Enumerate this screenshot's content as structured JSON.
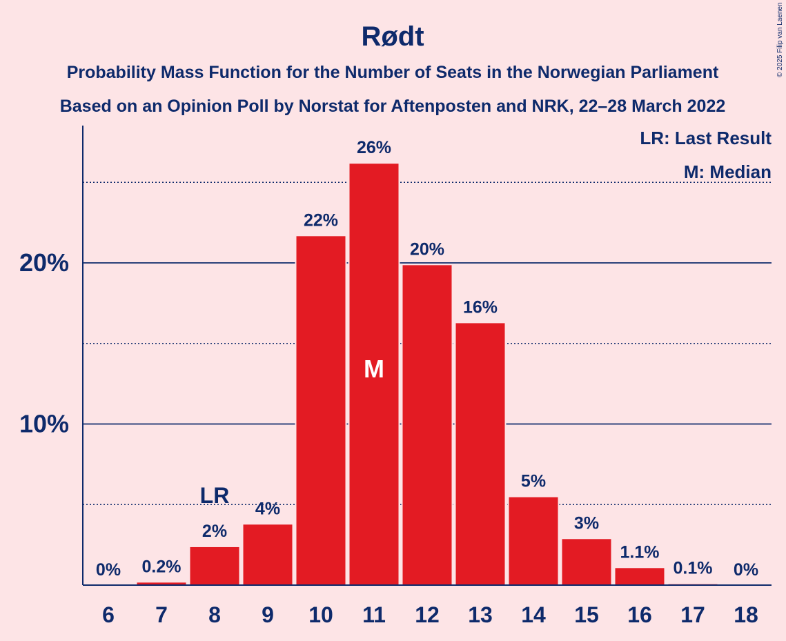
{
  "copyright": "© 2025 Filip van Laenen",
  "legend": {
    "lr": "LR: Last Result",
    "median": "M: Median"
  },
  "markers": {
    "last_result": "LR",
    "median": "M"
  },
  "colors": {
    "background": "#fde4e6",
    "bar": "#e31b23",
    "text": "#0e2a6b"
  },
  "chart_data": {
    "type": "bar",
    "title": "Rødt",
    "subtitle": "Probability Mass Function for the Number of Seats in the Norwegian Parliament",
    "subtitle2": "Based on an Opinion Poll by Norstat for Aftenposten and NRK, 22–28 March 2022",
    "xlabel": "",
    "ylabel": "",
    "categories": [
      "6",
      "7",
      "8",
      "9",
      "10",
      "11",
      "12",
      "13",
      "14",
      "15",
      "16",
      "17",
      "18"
    ],
    "values": [
      0,
      0.2,
      2.4,
      3.8,
      21.7,
      26.2,
      19.9,
      16.3,
      5.5,
      2.9,
      1.1,
      0.1,
      0
    ],
    "data_labels": [
      "0%",
      "0.2%",
      "2%",
      "4%",
      "22%",
      "26%",
      "20%",
      "16%",
      "5%",
      "3%",
      "1.1%",
      "0.1%",
      "0%"
    ],
    "ylim": [
      0,
      28.5
    ],
    "yticks": [
      10,
      20
    ],
    "ytick_labels": [
      "10%",
      "20%"
    ],
    "minor_gridlines": [
      5,
      15,
      25
    ],
    "last_result_seat": "8",
    "median_seat": "11",
    "legend_position": "top-right"
  }
}
